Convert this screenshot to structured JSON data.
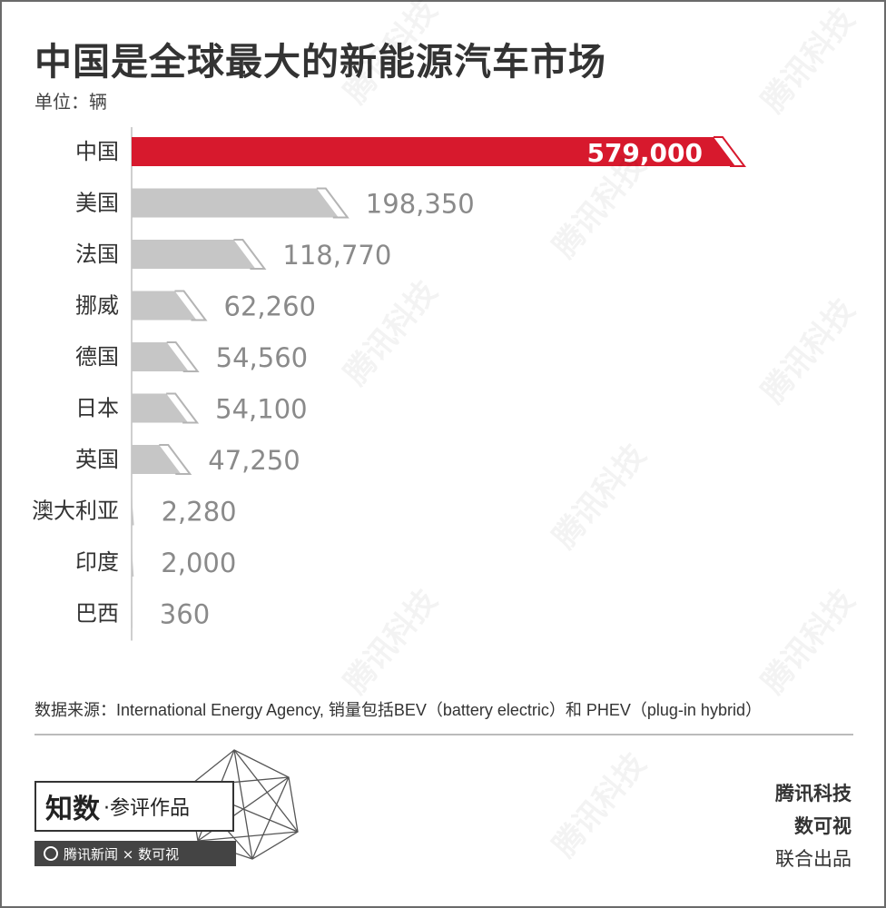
{
  "title": "中国是全球最大的新能源汽车市场",
  "unit_label": "单位：辆",
  "source_note": "数据来源：International Energy Agency, 销量包括BEV（battery electric）和 PHEV（plug-in hybrid）",
  "logo": {
    "main": "知数",
    "sub": "·参评作品",
    "bar": "腾讯新闻 × 数可视"
  },
  "credits": {
    "line1": "腾讯科技",
    "line2": "数可视",
    "line3": "联合出品"
  },
  "watermark": "腾讯科技",
  "colors": {
    "highlight": "#d7192d",
    "bar": "#c6c6c6",
    "outline": "#b4b4b4",
    "axis": "#cfcfcf",
    "value_text": "#8a8a8a"
  },
  "chart_data": {
    "type": "bar",
    "orientation": "horizontal",
    "categories": [
      "中国",
      "美国",
      "法国",
      "挪威",
      "德国",
      "日本",
      "英国",
      "澳大利亚",
      "印度",
      "巴西"
    ],
    "values": [
      579000,
      198350,
      118770,
      62260,
      54560,
      54100,
      47250,
      2280,
      2000,
      360
    ],
    "value_labels": [
      "579,000",
      "198,350",
      "118,770",
      "62,260",
      "54,560",
      "54,100",
      "47,250",
      "2,280",
      "2,000",
      "360"
    ],
    "highlight_index": 0,
    "xlim": [
      0,
      579000
    ],
    "title": "中国是全球最大的新能源汽车市场",
    "xlabel": "",
    "ylabel": "单位：辆",
    "grid": false,
    "legend": "none"
  }
}
